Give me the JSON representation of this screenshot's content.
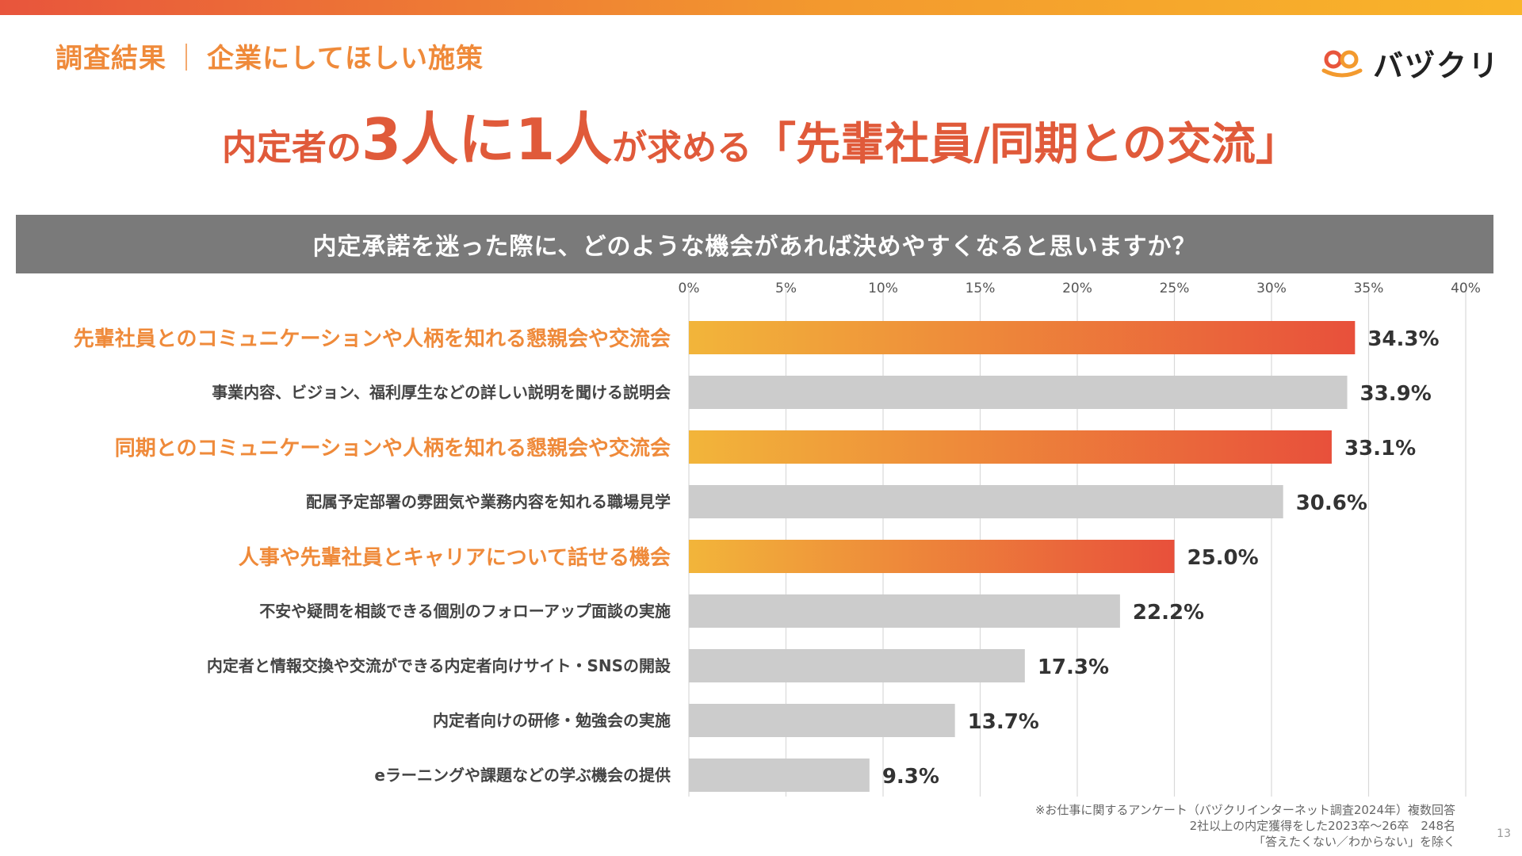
{
  "header": {
    "section": "調査結果",
    "section_separator": "｜",
    "section_topic": "企業にしてほしい施策",
    "logo_text": "バヅクリ"
  },
  "headline": {
    "part1": "内定者の",
    "part2": "3人に1人",
    "part3": "が求める",
    "part4": "「先輩社員/同期との交流」"
  },
  "question": "内定承諾を迷った際に、どのような機会があれば決めやすくなると思いますか？",
  "colors": {
    "accent_orange": "#ef8a3a",
    "headline_red": "#e05a3a",
    "highlight_start": "#f2b53a",
    "highlight_end": "#e8503b",
    "gray_bar": "#cccccc",
    "question_bg": "#7a7a7a"
  },
  "chart_data": {
    "type": "bar",
    "orientation": "horizontal",
    "title": "内定承諾を迷った際に、どのような機会があれば決めやすくなると思いますか？",
    "xlim": [
      0,
      40
    ],
    "x_ticks": [
      "0%",
      "5%",
      "10%",
      "15%",
      "20%",
      "25%",
      "30%",
      "35%",
      "40%"
    ],
    "grid": true,
    "categories": [
      "先輩社員とのコミュニケーションや人柄を知れる懇親会や交流会",
      "事業内容、ビジョン、福利厚生などの詳しい説明を聞ける説明会",
      "同期とのコミュニケーションや人柄を知れる懇親会や交流会",
      "配属予定部署の雰囲気や業務内容を知れる職場見学",
      "人事や先輩社員とキャリアについて話せる機会",
      "不安や疑問を相談できる個別のフォローアップ面談の実施",
      "内定者と情報交換や交流ができる内定者向けサイト・SNSの開設",
      "内定者向けの研修・勉強会の実施",
      "eラーニングや課題などの学ぶ機会の提供"
    ],
    "values": [
      34.3,
      33.9,
      33.1,
      30.6,
      25.0,
      22.2,
      17.3,
      13.7,
      9.3
    ],
    "value_labels": [
      "34.3%",
      "33.9%",
      "33.1%",
      "30.6%",
      "25.0%",
      "22.2%",
      "17.3%",
      "13.7%",
      "9.3%"
    ],
    "highlighted": [
      true,
      false,
      true,
      false,
      true,
      false,
      false,
      false,
      false
    ]
  },
  "footnote": {
    "line1": "※お仕事に関するアンケート（バヅクリインターネット調査2024年）複数回答",
    "line2": "2社以上の内定獲得をした2023卒〜26卒　248名",
    "line3": "「答えたくない／わからない」を除く"
  },
  "page_number": "13"
}
